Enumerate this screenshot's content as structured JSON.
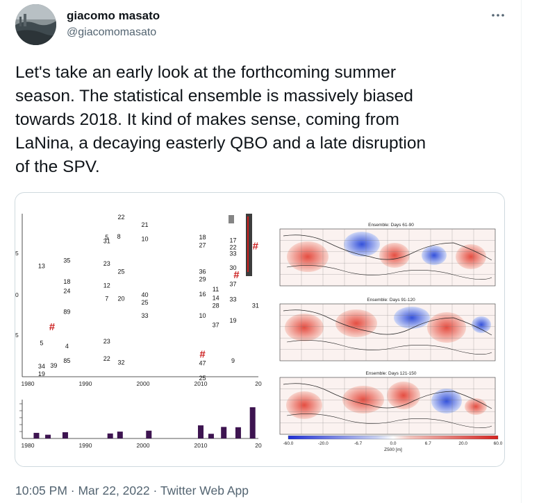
{
  "author": {
    "display_name": "giacomo masato",
    "handle": "@giacomomasato"
  },
  "icons": {
    "more": "more-horizontal-icon",
    "avatar": "avatar-photo"
  },
  "tweet": {
    "text": "Let's take an early look at the forthcoming summer\nseason. The statistical ensemble is massively biased\ntowards 2018. It kind of makes sense, coming from\nLaNina, a decaying easterly QBO and a late disruption\nof the SPV."
  },
  "meta": {
    "time": "10:05 PM",
    "separator": "·",
    "date": "Mar 22, 2022",
    "client": "Twitter Web App"
  },
  "media": {
    "scatter": {
      "x_ticks": [
        "1980",
        "1990",
        "2000",
        "2010",
        "20"
      ],
      "y_tick_marks": [
        "5",
        "0",
        "5"
      ],
      "points": [
        {
          "label": "22",
          "year": 1996.2,
          "row": 0
        },
        {
          "label": "21",
          "year": 2000.3,
          "row": 1
        },
        {
          "label": "5",
          "year": 1993.7,
          "row": 2.6
        },
        {
          "label": "31",
          "year": 1993.7,
          "row": 3.1
        },
        {
          "label": "8",
          "year": 1995.8,
          "row": 2.5
        },
        {
          "label": "10",
          "year": 2000.3,
          "row": 2.8
        },
        {
          "label": "18",
          "year": 2010.3,
          "row": 2.6
        },
        {
          "label": "27",
          "year": 2010.3,
          "row": 3.6
        },
        {
          "label": "17",
          "year": 2015.6,
          "row": 3.0
        },
        {
          "label": "22",
          "year": 2015.6,
          "row": 3.9
        },
        {
          "label": "33",
          "year": 2015.6,
          "row": 4.7
        },
        {
          "label": "35",
          "year": 1986.8,
          "row": 5.6
        },
        {
          "label": "13",
          "year": 1982.4,
          "row": 6.3
        },
        {
          "label": "23",
          "year": 1993.7,
          "row": 6.0
        },
        {
          "label": "25",
          "year": 1996.2,
          "row": 7.0
        },
        {
          "label": "36",
          "year": 2010.3,
          "row": 7.0
        },
        {
          "label": "30",
          "year": 2015.6,
          "row": 6.5
        },
        {
          "label": "29",
          "year": 2010.3,
          "row": 8.0
        },
        {
          "label": "18",
          "year": 1986.8,
          "row": 8.3
        },
        {
          "label": "12",
          "year": 1993.7,
          "row": 8.8
        },
        {
          "label": "37",
          "year": 2015.6,
          "row": 8.6
        },
        {
          "label": "11",
          "year": 2012.6,
          "row": 9.3
        },
        {
          "label": "24",
          "year": 1986.8,
          "row": 9.5
        },
        {
          "label": "16",
          "year": 2010.3,
          "row": 9.9
        },
        {
          "label": "40",
          "year": 2000.3,
          "row": 10.0
        },
        {
          "label": "14",
          "year": 2012.6,
          "row": 10.4
        },
        {
          "label": "7",
          "year": 1993.7,
          "row": 10.5
        },
        {
          "label": "20",
          "year": 1996.2,
          "row": 10.5
        },
        {
          "label": "33",
          "year": 2015.6,
          "row": 10.6
        },
        {
          "label": "25",
          "year": 2000.3,
          "row": 11.0
        },
        {
          "label": "28",
          "year": 2012.6,
          "row": 11.4
        },
        {
          "label": "31",
          "year": 2019.5,
          "row": 11.4
        },
        {
          "label": "89",
          "year": 1986.8,
          "row": 12.2
        },
        {
          "label": "33",
          "year": 2000.3,
          "row": 12.7
        },
        {
          "label": "10",
          "year": 2010.3,
          "row": 12.7
        },
        {
          "label": "19",
          "year": 2015.6,
          "row": 13.3
        },
        {
          "label": "37",
          "year": 2012.6,
          "row": 13.9
        },
        {
          "label": "23",
          "year": 1993.7,
          "row": 16.0
        },
        {
          "label": "5",
          "year": 1982.4,
          "row": 16.2
        },
        {
          "label": "4",
          "year": 1986.8,
          "row": 16.6
        },
        {
          "label": "22",
          "year": 1993.7,
          "row": 18.2
        },
        {
          "label": "32",
          "year": 1996.2,
          "row": 18.7
        },
        {
          "label": "85",
          "year": 1986.8,
          "row": 18.5
        },
        {
          "label": "9",
          "year": 2015.6,
          "row": 18.5
        },
        {
          "label": "39",
          "year": 1984.5,
          "row": 19.1
        },
        {
          "label": "47",
          "year": 2010.3,
          "row": 18.8
        },
        {
          "label": "34",
          "year": 1982.4,
          "row": 19.2
        },
        {
          "label": "19",
          "year": 1982.4,
          "row": 20.2
        },
        {
          "label": "25",
          "year": 2010.3,
          "row": 20.7
        }
      ],
      "hash_marks": [
        {
          "label": "#",
          "year": 1984.2,
          "row": 14.3
        },
        {
          "label": "#",
          "year": 2016.2,
          "row": 7.6
        },
        {
          "label": "#",
          "year": 2010.3,
          "row": 17.8
        },
        {
          "label": "#",
          "year": 2019.5,
          "row": 3.9
        }
      ]
    },
    "bars": {
      "x_ticks": [
        "1980",
        "1990",
        "2000",
        "2010",
        "20"
      ],
      "values": [
        {
          "year": 1981.5,
          "value": 0.18
        },
        {
          "year": 1983.5,
          "value": 0.12
        },
        {
          "year": 1986.5,
          "value": 0.2
        },
        {
          "year": 1994.3,
          "value": 0.16
        },
        {
          "year": 1996.0,
          "value": 0.22
        },
        {
          "year": 2001.0,
          "value": 0.25
        },
        {
          "year": 2010.0,
          "value": 0.42
        },
        {
          "year": 2011.8,
          "value": 0.15
        },
        {
          "year": 2014.0,
          "value": 0.37
        },
        {
          "year": 2016.5,
          "value": 0.36
        },
        {
          "year": 2019.0,
          "value": 1.0
        }
      ]
    },
    "maps": [
      {
        "title": "Ensemble: Days 61-90"
      },
      {
        "title": "Ensemble: Days 91-120"
      },
      {
        "title": "Ensemble: Days 121-150"
      }
    ],
    "colorbar": {
      "ticks": [
        "-60.0",
        "-20.0",
        "-6.7",
        "0.0",
        "6.7",
        "20.0",
        "60.0"
      ],
      "label": "Z500 [m]"
    }
  }
}
